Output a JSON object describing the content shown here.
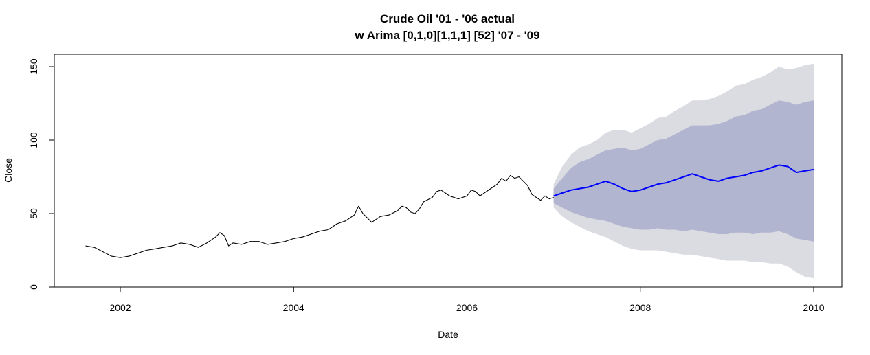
{
  "chart_data": {
    "type": "line",
    "title": "Crude Oil '01 - '06 actual",
    "subtitle": "w Arima [0,1,0][1,1,1] [52] '07 - '09",
    "xlabel": "Date",
    "ylabel": "Close",
    "xlim": [
      2001.25,
      2010.4
    ],
    "ylim": [
      0,
      160
    ],
    "x_ticks": [
      2002,
      2004,
      2006,
      2008,
      2010
    ],
    "x_tick_labels": [
      "2002",
      "2004",
      "2006",
      "2008",
      "2010"
    ],
    "y_ticks": [
      0,
      50,
      100,
      150
    ],
    "y_tick_labels": [
      "0",
      "50",
      "100",
      "150"
    ],
    "grid": false,
    "colors": {
      "actual": "#000000",
      "forecast": "#0000ff",
      "band95": "#dbdbe2",
      "band80": "#b1b5d0"
    },
    "actual": {
      "x": [
        2001.6,
        2001.7,
        2001.8,
        2001.9,
        2002.0,
        2002.1,
        2002.2,
        2002.3,
        2002.4,
        2002.5,
        2002.6,
        2002.7,
        2002.8,
        2002.9,
        2003.0,
        2003.1,
        2003.15,
        2003.2,
        2003.25,
        2003.3,
        2003.4,
        2003.5,
        2003.6,
        2003.7,
        2003.8,
        2003.9,
        2004.0,
        2004.1,
        2004.2,
        2004.3,
        2004.4,
        2004.5,
        2004.6,
        2004.7,
        2004.75,
        2004.8,
        2004.85,
        2004.9,
        2004.95,
        2005.0,
        2005.1,
        2005.2,
        2005.25,
        2005.3,
        2005.35,
        2005.4,
        2005.45,
        2005.5,
        2005.6,
        2005.65,
        2005.7,
        2005.75,
        2005.8,
        2005.9,
        2006.0,
        2006.05,
        2006.1,
        2006.15,
        2006.2,
        2006.3,
        2006.35,
        2006.4,
        2006.45,
        2006.5,
        2006.55,
        2006.6,
        2006.7,
        2006.75,
        2006.8,
        2006.85,
        2006.9,
        2006.95,
        2007.0
      ],
      "y": [
        28,
        27,
        24,
        21,
        20,
        21,
        23,
        25,
        26,
        27,
        28,
        30,
        29,
        27,
        30,
        34,
        37,
        35,
        28,
        30,
        29,
        31,
        31,
        29,
        30,
        31,
        33,
        34,
        36,
        38,
        39,
        43,
        45,
        49,
        55,
        50,
        47,
        44,
        46,
        48,
        49,
        52,
        55,
        54,
        51,
        50,
        53,
        58,
        61,
        65,
        66,
        64,
        62,
        60,
        62,
        66,
        65,
        62,
        64,
        68,
        70,
        74,
        72,
        76,
        74,
        75,
        69,
        63,
        61,
        59,
        62,
        60,
        61
      ]
    },
    "forecast": {
      "x": [
        2007.0,
        2007.1,
        2007.2,
        2007.3,
        2007.4,
        2007.5,
        2007.6,
        2007.7,
        2007.8,
        2007.9,
        2008.0,
        2008.1,
        2008.2,
        2008.3,
        2008.4,
        2008.5,
        2008.6,
        2008.7,
        2008.8,
        2008.9,
        2009.0,
        2009.1,
        2009.2,
        2009.3,
        2009.4,
        2009.5,
        2009.6,
        2009.7,
        2009.8,
        2009.9,
        2010.0
      ],
      "y": [
        62,
        64,
        66,
        67,
        68,
        70,
        72,
        70,
        67,
        65,
        66,
        68,
        70,
        71,
        73,
        75,
        77,
        75,
        73,
        72,
        74,
        75,
        76,
        78,
        79,
        81,
        83,
        82,
        78,
        79,
        80
      ],
      "lo80": [
        57,
        54,
        51,
        49,
        47,
        46,
        45,
        43,
        41,
        40,
        39,
        39,
        40,
        39,
        39,
        38,
        39,
        38,
        37,
        36,
        36,
        37,
        37,
        36,
        37,
        37,
        38,
        36,
        33,
        32,
        31
      ],
      "hi80": [
        67,
        74,
        81,
        85,
        87,
        90,
        93,
        94,
        95,
        93,
        94,
        97,
        100,
        101,
        104,
        107,
        110,
        110,
        110,
        111,
        113,
        116,
        117,
        120,
        121,
        124,
        127,
        126,
        124,
        126,
        127
      ],
      "lo95": [
        54,
        48,
        44,
        41,
        38,
        36,
        34,
        31,
        28,
        26,
        25,
        25,
        25,
        24,
        23,
        22,
        22,
        21,
        20,
        19,
        18,
        18,
        18,
        17,
        17,
        16,
        16,
        14,
        10,
        7,
        6
      ],
      "hi95": [
        70,
        82,
        90,
        95,
        97,
        100,
        105,
        107,
        107,
        105,
        108,
        111,
        115,
        116,
        120,
        123,
        127,
        127,
        128,
        130,
        133,
        137,
        138,
        141,
        143,
        146,
        150,
        148,
        149,
        151,
        152
      ]
    }
  }
}
